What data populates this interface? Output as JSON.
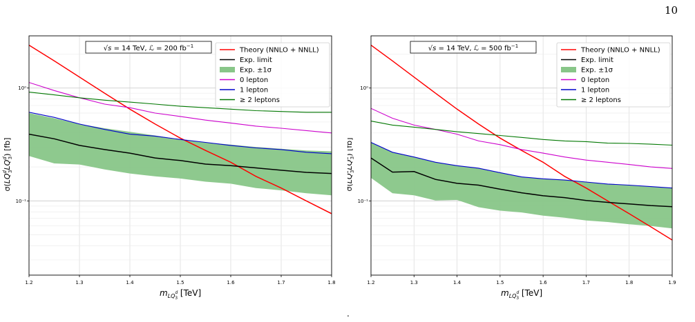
{
  "page": {
    "number": "10",
    "trailing_mark": "."
  },
  "chart_data": [
    {
      "type": "line",
      "title": "√s = 14 TeV, ℒ = 200 fb⁻¹",
      "title_parts": {
        "sqrt_s": "√s",
        "energy": " = 14 TeV, ",
        "lumi_sym": "ℒ",
        "lumi_val": " = 200 fb",
        "lumi_exp": "−1"
      },
      "xlabel": "m_LQ3d [TeV]",
      "xlabel_parts": {
        "m": "m",
        "sub": "LQ",
        "sup": "d",
        "sub3": "3",
        "unit": " [TeV]"
      },
      "ylabel": "σ(LQ3d LQ3d) [fb]",
      "ylabel_parts": {
        "pre": "σ(",
        "lq": "LQ",
        "sup": "d",
        "sub": "3",
        "unit": ") [fb]"
      },
      "x_scale": "linear",
      "y_scale": "log",
      "xlim": [
        1.2,
        1.8
      ],
      "ylim": [
        0.022,
        2.9
      ],
      "x_ticks": [
        "1.2",
        "1.3",
        "1.4",
        "1.5",
        "1.6",
        "1.7",
        "1.8"
      ],
      "y_ticks": [
        {
          "value": 1,
          "label": "10⁰"
        },
        {
          "value": 0.1,
          "label": "10⁻¹"
        }
      ],
      "grid": true,
      "legend_position": "top-right",
      "x": [
        1.2,
        1.25,
        1.3,
        1.35,
        1.4,
        1.45,
        1.5,
        1.55,
        1.6,
        1.65,
        1.7,
        1.75,
        1.8
      ],
      "series": [
        {
          "name": "Theory (NNLO + NNLL)",
          "color": "#ff0000",
          "kind": "line",
          "values": [
            2.4,
            1.74,
            1.25,
            0.9,
            0.65,
            0.48,
            0.36,
            0.28,
            0.22,
            0.165,
            0.13,
            0.1,
            0.077
          ]
        },
        {
          "name": "Exp. limit",
          "color": "#000000",
          "kind": "line",
          "values": [
            0.39,
            0.355,
            0.31,
            0.285,
            0.265,
            0.24,
            0.228,
            0.212,
            0.205,
            0.196,
            0.187,
            0.179,
            0.175
          ]
        },
        {
          "name": "Exp. ±1σ",
          "color": "#88c688",
          "kind": "band",
          "low": [
            0.25,
            0.215,
            0.21,
            0.19,
            0.175,
            0.165,
            0.158,
            0.148,
            0.142,
            0.13,
            0.124,
            0.117,
            0.112
          ],
          "high": [
            0.6,
            0.54,
            0.48,
            0.44,
            0.41,
            0.38,
            0.35,
            0.33,
            0.315,
            0.3,
            0.29,
            0.28,
            0.275
          ]
        },
        {
          "name": "0 lepton",
          "color": "#cc00cc",
          "kind": "line",
          "values": [
            1.12,
            0.95,
            0.82,
            0.72,
            0.67,
            0.6,
            0.56,
            0.52,
            0.49,
            0.46,
            0.44,
            0.42,
            0.4
          ]
        },
        {
          "name": "1 lepton",
          "color": "#0000cc",
          "kind": "line",
          "values": [
            0.61,
            0.55,
            0.48,
            0.43,
            0.39,
            0.375,
            0.35,
            0.33,
            0.31,
            0.295,
            0.285,
            0.27,
            0.262
          ]
        },
        {
          "name": "≥ 2 leptons",
          "color": "#007700",
          "kind": "line",
          "values": [
            0.92,
            0.87,
            0.82,
            0.78,
            0.75,
            0.72,
            0.69,
            0.67,
            0.65,
            0.63,
            0.62,
            0.61,
            0.61
          ]
        }
      ]
    },
    {
      "type": "line",
      "title": "√s = 14 TeV, ℒ = 500 fb⁻¹",
      "title_parts": {
        "sqrt_s": "√s",
        "energy": " = 14 TeV, ",
        "lumi_sym": "ℒ",
        "lumi_val": " = 500 fb",
        "lumi_exp": "−1"
      },
      "xlabel": "m_LQ3d [TeV]",
      "xlabel_parts": {
        "m": "m",
        "sub": "LQ",
        "sup": "d",
        "sub3": "3",
        "unit": " [TeV]"
      },
      "ylabel": "σ(LQ3d LQ3d) [fb]",
      "ylabel_parts": {
        "pre": "σ(",
        "lq": "LQ",
        "sup": "d",
        "sub": "3",
        "unit": ") [fb]"
      },
      "x_scale": "linear",
      "y_scale": "log",
      "xlim": [
        1.2,
        1.9
      ],
      "ylim": [
        0.022,
        2.9
      ],
      "x_ticks": [
        "1.2",
        "1.3",
        "1.4",
        "1.5",
        "1.6",
        "1.7",
        "1.8",
        "1.9"
      ],
      "y_ticks": [
        {
          "value": 1,
          "label": "10⁰"
        },
        {
          "value": 0.1,
          "label": "10⁻¹"
        }
      ],
      "grid": true,
      "legend_position": "top-right",
      "x": [
        1.2,
        1.25,
        1.3,
        1.35,
        1.4,
        1.45,
        1.5,
        1.55,
        1.6,
        1.65,
        1.7,
        1.75,
        1.8,
        1.85,
        1.9
      ],
      "series": [
        {
          "name": "Theory (NNLO + NNLL)",
          "color": "#ff0000",
          "kind": "line",
          "values": [
            2.4,
            1.74,
            1.25,
            0.9,
            0.65,
            0.48,
            0.36,
            0.28,
            0.22,
            0.165,
            0.13,
            0.1,
            0.077,
            0.059,
            0.045
          ]
        },
        {
          "name": "Exp. limit",
          "color": "#000000",
          "kind": "line",
          "values": [
            0.24,
            0.18,
            0.182,
            0.155,
            0.143,
            0.138,
            0.127,
            0.118,
            0.111,
            0.107,
            0.101,
            0.097,
            0.094,
            0.091,
            0.089
          ]
        },
        {
          "name": "Exp. ±1σ",
          "color": "#88c688",
          "kind": "band",
          "low": [
            0.16,
            0.117,
            0.112,
            0.101,
            0.102,
            0.088,
            0.082,
            0.079,
            0.074,
            0.071,
            0.067,
            0.065,
            0.062,
            0.06,
            0.057
          ]
        },
        {
          "name": "0 lepton",
          "color": "#cc00cc",
          "kind": "line",
          "values": [
            0.66,
            0.54,
            0.47,
            0.43,
            0.39,
            0.34,
            0.315,
            0.285,
            0.265,
            0.245,
            0.23,
            0.22,
            0.21,
            0.2,
            0.194
          ]
        },
        {
          "name": "1 lepton",
          "color": "#0000cc",
          "kind": "line",
          "values": [
            0.33,
            0.27,
            0.245,
            0.22,
            0.205,
            0.195,
            0.178,
            0.163,
            0.157,
            0.153,
            0.147,
            0.141,
            0.138,
            0.134,
            0.13
          ]
        },
        {
          "name": "≥ 2 leptons",
          "color": "#007700",
          "kind": "line",
          "values": [
            0.51,
            0.47,
            0.45,
            0.43,
            0.41,
            0.395,
            0.38,
            0.365,
            0.35,
            0.34,
            0.335,
            0.325,
            0.323,
            0.318,
            0.312
          ]
        }
      ]
    }
  ]
}
